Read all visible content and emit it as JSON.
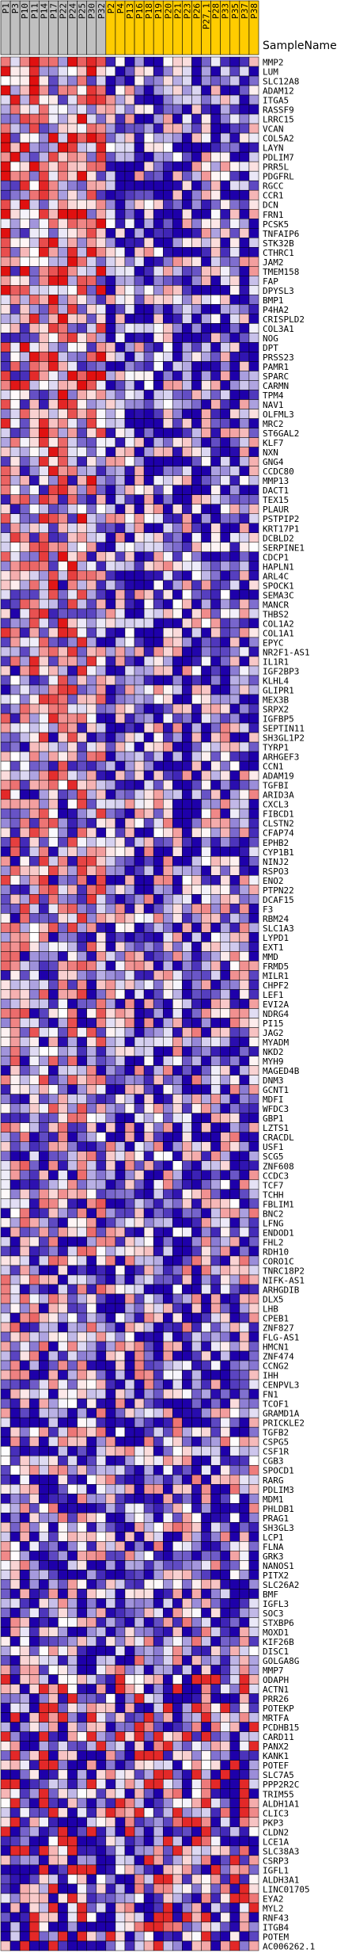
{
  "chart_data": {
    "type": "heatmap",
    "title": "",
    "column_header_title": "SampleName",
    "samples": [
      "P1",
      "P3",
      "P10",
      "P11",
      "P14",
      "P17",
      "P22",
      "P24",
      "P25",
      "P30",
      "P32",
      "P2",
      "P4",
      "P13",
      "P16",
      "P18",
      "P19",
      "P20",
      "P21",
      "P23",
      "P26",
      "P27,1",
      "P28",
      "P33",
      "P35",
      "P37",
      "P38"
    ],
    "group_colors": {
      "control": "#c0c0c0",
      "case": "#ffcc00"
    },
    "sample_groups": [
      "control",
      "control",
      "control",
      "control",
      "control",
      "control",
      "control",
      "control",
      "control",
      "control",
      "control",
      "case",
      "case",
      "case",
      "case",
      "case",
      "case",
      "case",
      "case",
      "case",
      "case",
      "case",
      "case",
      "case",
      "case",
      "case",
      "case"
    ],
    "color_scale": {
      "low": "#1e00aa",
      "mid": "#ffffff",
      "high": "#e01010"
    },
    "genes": [
      "MMP2",
      "LUM",
      "SLC12A8",
      "ADAM12",
      "ITGA5",
      "RASSF9",
      "LRRC15",
      "VCAN",
      "COL5A2",
      "LAYN",
      "PDLIM7",
      "PRR5L",
      "PDGFRL",
      "RGCC",
      "CCR1",
      "DCN",
      "FRN1",
      "PCSK5",
      "TNFAIP6",
      "STK32B",
      "CTHRC1",
      "JAM2",
      "TMEM158",
      "FAP",
      "DPYSL3",
      "BMP1",
      "P4HA2",
      "CRISPLD2",
      "COL3A1",
      "NOG",
      "DPT",
      "PRSS23",
      "PAMR1",
      "SPARC",
      "CARMN",
      "TPM4",
      "NAV1",
      "OLFML3",
      "MRC2",
      "ST6GAL2",
      "KLF7",
      "NXN",
      "GNG4",
      "CCDC80",
      "MMP13",
      "DACT1",
      "TEX15",
      "PLAUR",
      "PSTPIP2",
      "KRT17P1",
      "DCBLD2",
      "SERPINE1",
      "CDCP1",
      "HAPLN1",
      "ARL4C",
      "SPOCK1",
      "SEMA3C",
      "MANCR",
      "THBS2",
      "COL1A2",
      "COL1A1",
      "EPYC",
      "NR2F1-AS1",
      "IL1R1",
      "IGF2BP3",
      "KLHL4",
      "GLIPR1",
      "MEX3B",
      "SRPX2",
      "IGFBP5",
      "SEPTIN11",
      "SH3GL1P2",
      "TYRP1",
      "ARHGEF3",
      "CCN1",
      "ADAM19",
      "TGFBI",
      "ARID3A",
      "CXCL3",
      "FIBCD1",
      "CLSTN2",
      "CFAP74",
      "EPHB2",
      "CYP1B1",
      "NINJ2",
      "RSPO3",
      "ENO2",
      "PTPN22",
      "DCAF15",
      "F3",
      "RBM24",
      "SLC1A3",
      "LYPD1",
      "EXT1",
      "MMD",
      "FRMD5",
      "MILR1",
      "CHPF2",
      "LEF1",
      "EVI2A",
      "NDRG4",
      "PI15",
      "JAG2",
      "MYADM",
      "NKD2",
      "MYH9",
      "MAGED4B",
      "DNM3",
      "GCNT1",
      "MDFI",
      "WFDC3",
      "GBP1",
      "LZTS1",
      "CRACDL",
      "USF1",
      "SCG5",
      "ZNF608",
      "CCDC3",
      "TCF7",
      "TCHH",
      "FBLIM1",
      "BNC2",
      "LFNG",
      "ENDOD1",
      "FHL2",
      "RDH10",
      "CORO1C",
      "TNRC18P2",
      "NIFK-AS1",
      "ARHGDIB",
      "DLX5",
      "LHB",
      "CPEB1",
      "ZNF827",
      "FLG-AS1",
      "HMCN1",
      "ZNF474",
      "CCNG2",
      "IHH",
      "CENPVL3",
      "FN1",
      "TCOF1",
      "GRAMD1A",
      "PRICKLE2",
      "TGFB2",
      "CSPG5",
      "CSF1R",
      "CGB3",
      "SPOCD1",
      "RARG",
      "PDLIM3",
      "MDM1",
      "PHLDB1",
      "PRAG1",
      "SH3GL3",
      "LCP1",
      "FLNA",
      "GRK3",
      "NANOS1",
      "PITX2",
      "SLC26A2",
      "BMF",
      "IGFL3",
      "SOC3",
      "STXBP6",
      "MOXD1",
      "KIF26B",
      "DISC1",
      "GOLGA8G",
      "MMP7",
      "ODAPH",
      "ACTN1",
      "PRR26",
      "POTEKP",
      "MRTFA",
      "PCDHB15",
      "CARD11",
      "PANX2",
      "KANK1",
      "POTEF",
      "SLC7A5",
      "PPP2R2C",
      "TRIM55",
      "ALDH1A1",
      "CLIC3",
      "PKP3",
      "CLDN2",
      "LCE1A",
      "SLC38A3",
      "CSRP3",
      "IGFL1",
      "ALDH3A1",
      "LINC01705",
      "EYA2",
      "MYL2",
      "RNF43",
      "ITGB4",
      "POTEM",
      "AC006262.1"
    ]
  }
}
